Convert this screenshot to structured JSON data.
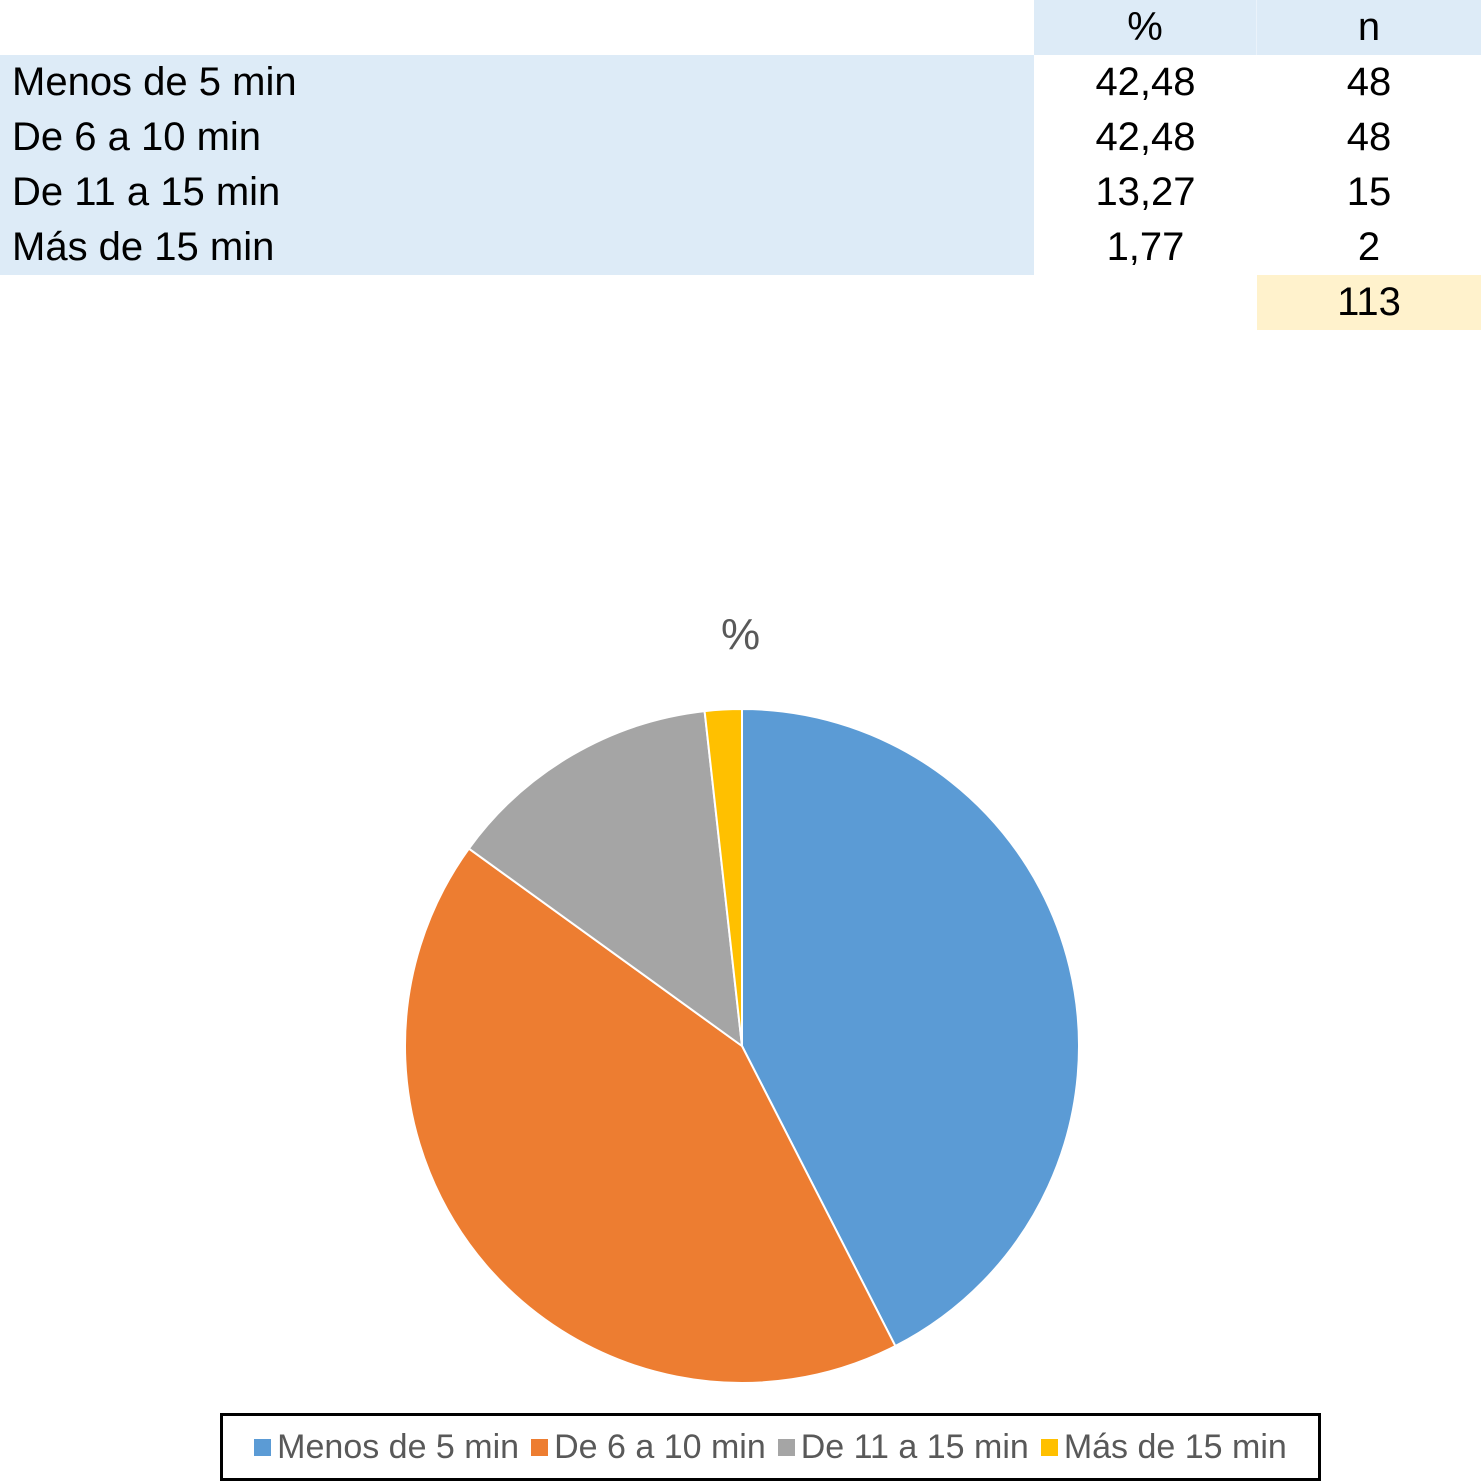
{
  "table": {
    "headers": {
      "label": "",
      "pct": "%",
      "n": "n"
    },
    "rows": [
      {
        "label": "Menos de 5 min",
        "pct": "42,48",
        "n": "48"
      },
      {
        "label": "De 6 a 10 min",
        "pct": "42,48",
        "n": "48"
      },
      {
        "label": "De 11 a 15 min",
        "pct": "13,27",
        "n": "15"
      },
      {
        "label": "Más de 15 min",
        "pct": "1,77",
        "n": "2"
      }
    ],
    "total_n": "113"
  },
  "chart_data": {
    "type": "pie",
    "title": "%",
    "categories": [
      "Menos de 5 min",
      "De 6 a 10 min",
      "De 11 a 15 min",
      "Más de 15 min"
    ],
    "values": [
      42.48,
      42.48,
      13.27,
      1.77
    ],
    "colors": [
      "#5b9bd5",
      "#ed7d31",
      "#a5a5a5",
      "#ffc000"
    ],
    "legend": "bottom"
  }
}
